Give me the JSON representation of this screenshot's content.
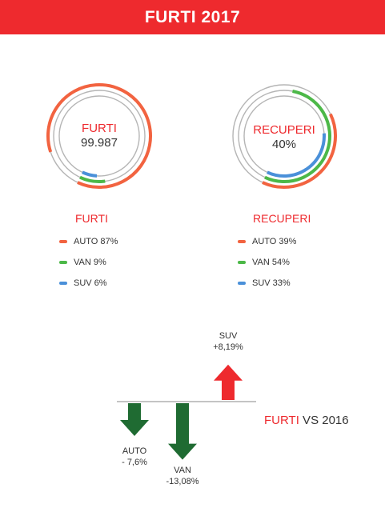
{
  "header": {
    "title": "FURTI 2017"
  },
  "colors": {
    "brand_red": "#ee2a2e",
    "accent_red": "#ee2a2e",
    "auto": "#f26340",
    "van": "#4cb848",
    "suv": "#4a90d9",
    "ring_base": "#b5b5b5",
    "arrow_up": "#ee2a2e",
    "arrow_down": "#1f6b32"
  },
  "rings": [
    {
      "center_label": "FURTI",
      "center_value": "99.987",
      "title": "FURTI"
    },
    {
      "center_label": "RECUPERI",
      "center_value": "40%",
      "title": "RECUPERI"
    }
  ],
  "legends": [
    [
      {
        "label": "AUTO 87%",
        "color": "auto"
      },
      {
        "label": "VAN 9%",
        "color": "van"
      },
      {
        "label": "SUV 6%",
        "color": "suv"
      }
    ],
    [
      {
        "label": "AUTO 39%",
        "color": "auto"
      },
      {
        "label": "VAN 54%",
        "color": "van"
      },
      {
        "label": "SUV 33%",
        "color": "suv"
      }
    ]
  ],
  "comparison": {
    "title_red": "FURTI",
    "title_rest": " VS 2016",
    "items": [
      {
        "name": "AUTO",
        "value_label": "- 7,6%",
        "value": -7.6
      },
      {
        "name": "VAN",
        "value_label": "-13,08%",
        "value": -13.08
      },
      {
        "name": "SUV",
        "value_label": "+8,19%",
        "value": 8.19
      }
    ]
  },
  "chart_data": [
    {
      "type": "pie",
      "title": "FURTI",
      "center_value": "99.987",
      "series": [
        {
          "name": "AUTO",
          "value": 87
        },
        {
          "name": "VAN",
          "value": 9
        },
        {
          "name": "SUV",
          "value": 6
        }
      ]
    },
    {
      "type": "pie",
      "title": "RECUPERI",
      "center_value": "40%",
      "series": [
        {
          "name": "AUTO",
          "value": 39
        },
        {
          "name": "VAN",
          "value": 54
        },
        {
          "name": "SUV",
          "value": 33
        }
      ]
    },
    {
      "type": "bar",
      "title": "FURTI VS 2016",
      "categories": [
        "AUTO",
        "VAN",
        "SUV"
      ],
      "values": [
        -7.6,
        -13.08,
        8.19
      ],
      "value_labels": [
        "- 7,6%",
        "-13,08%",
        "+8,19%"
      ]
    }
  ]
}
